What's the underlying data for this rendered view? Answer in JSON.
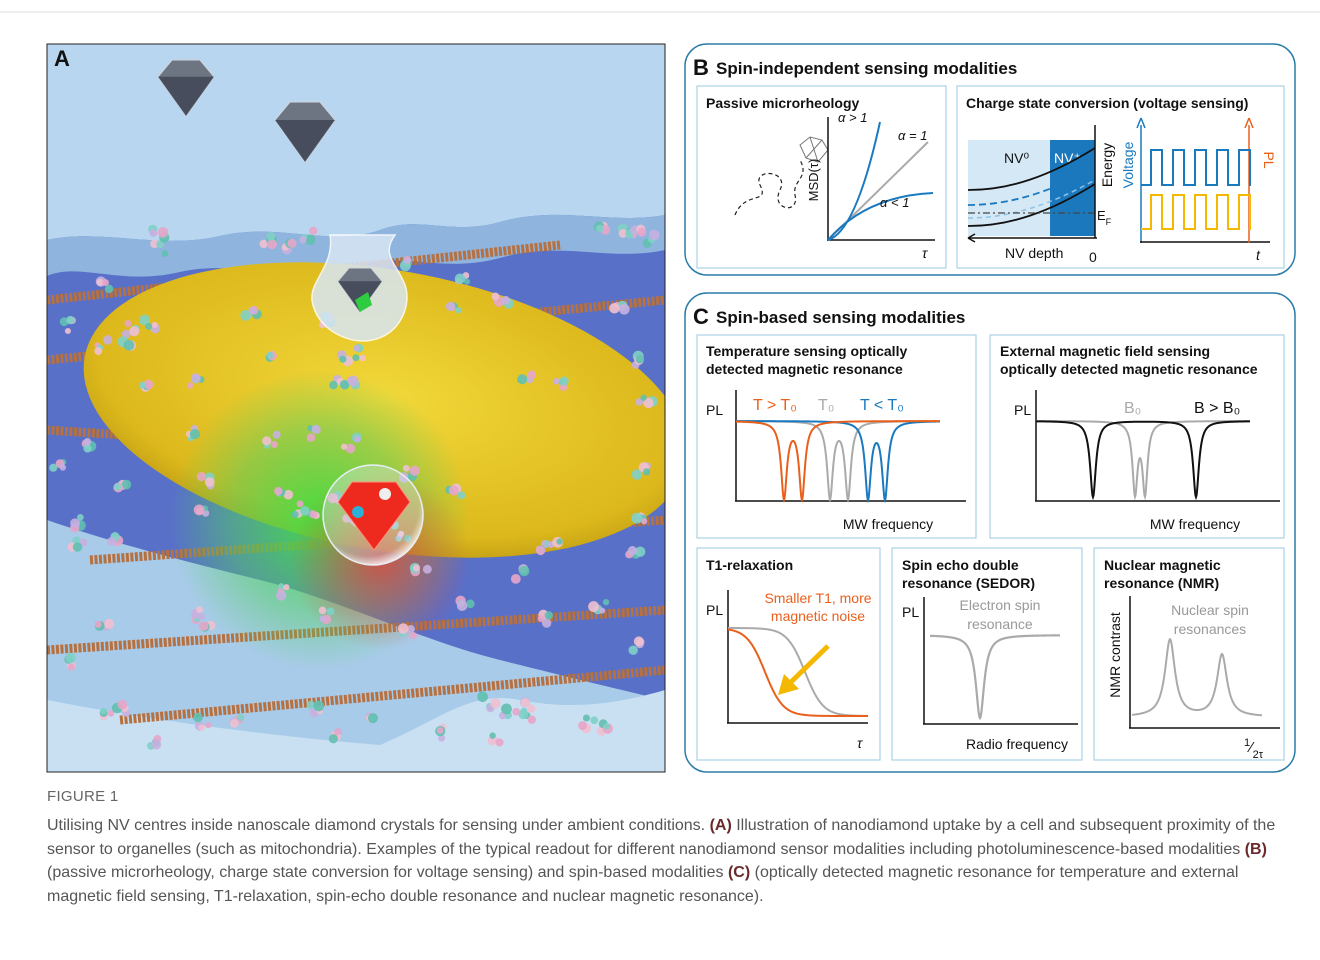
{
  "panel_a": {
    "label": "A"
  },
  "panel_b": {
    "label": "B",
    "title": "Spin-independent sensing modalities",
    "microrheology": {
      "title": "Passive microrheology",
      "y_label": "MSD(τ)",
      "x_label": "τ",
      "curves": [
        "α > 1",
        "α = 1",
        "α < 1"
      ]
    },
    "charge_state": {
      "title": "Charge state conversion (voltage sensing)",
      "regions": [
        "NV⁰",
        "NV⁺"
      ],
      "energy_label": "Energy",
      "fermi_label": {
        "base": "E",
        "sub": "F"
      },
      "x_label": "NV depth",
      "x_origin": "0",
      "voltage_label": "Voltage",
      "pl_label": "PL",
      "t_label": "t"
    }
  },
  "panel_c": {
    "label": "C",
    "title": "Spin-based sensing modalities",
    "temperature": {
      "title": [
        "Temperature sensing optically",
        "detected magnetic resonance"
      ],
      "y_label": "PL",
      "curves": [
        "T > T₀",
        "T₀",
        "T < T₀"
      ],
      "x_label": "MW frequency"
    },
    "magnetic_field": {
      "title": [
        "External magnetic field sensing",
        "optically detected magnetic resonance"
      ],
      "y_label": "PL",
      "curves": [
        "B₀",
        "B > B₀"
      ],
      "x_label": "MW frequency"
    },
    "t1": {
      "title": [
        "T1-relaxation"
      ],
      "y_label": "PL",
      "annotation": [
        "Smaller T1, more",
        "magnetic noise"
      ],
      "x_label": "τ"
    },
    "sedor": {
      "title": [
        "Spin echo double",
        "resonance (SEDOR)"
      ],
      "y_label": "PL",
      "annotation": [
        "Electron spin",
        "resonance"
      ],
      "x_label": "Radio frequency"
    },
    "nmr": {
      "title": [
        "Nuclear magnetic",
        "resonance (NMR)"
      ],
      "y_label": "NMR contrast",
      "annotation": [
        "Nuclear spin",
        "resonances"
      ],
      "x_label": {
        "num": "1",
        "den": "2τ"
      }
    }
  },
  "caption": {
    "label": "FIGURE 1",
    "segments": [
      "Utilising NV centres inside nanoscale diamond crystals for sensing under ambient conditions. ",
      "(A)",
      " Illustration of nanodiamond uptake by a cell and subsequent proximity of the sensor to organelles (such as mitochondria). Examples of the typical readout for different nanodiamond sensor modalities including photoluminescence-based modalities ",
      "(B)",
      " (passive microrheology, charge state conversion for voltage sensing) and spin-based modalities ",
      "(C)",
      " (optically detected magnetic resonance for temperature and external magnetic field sensing, T1-relaxation, spin-echo double resonance and nuclear magnetic resonance)."
    ]
  }
}
